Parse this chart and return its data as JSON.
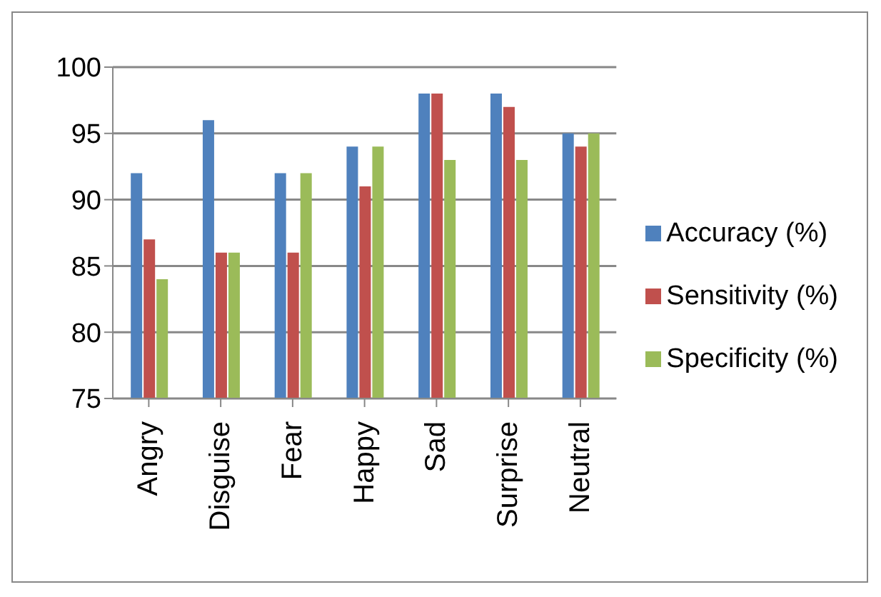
{
  "chart_data": {
    "type": "bar",
    "categories": [
      "Angry",
      "Disguise",
      "Fear",
      "Happy",
      "Sad",
      "Surprise",
      "Neutral"
    ],
    "series": [
      {
        "name": "Accuracy (%)",
        "color": "#4f81bd",
        "values": [
          92,
          96,
          92,
          94,
          98,
          98,
          95
        ]
      },
      {
        "name": "Sensitivity (%)",
        "color": "#c0504d",
        "values": [
          87,
          86,
          86,
          91,
          98,
          97,
          94
        ]
      },
      {
        "name": "Specificity (%)",
        "color": "#9bbb59",
        "values": [
          84,
          86,
          92,
          94,
          93,
          93,
          95
        ]
      }
    ],
    "ylim": [
      75,
      100
    ],
    "yticks": [
      75,
      80,
      85,
      90,
      95,
      100
    ],
    "grid": "y",
    "legend": "right"
  }
}
